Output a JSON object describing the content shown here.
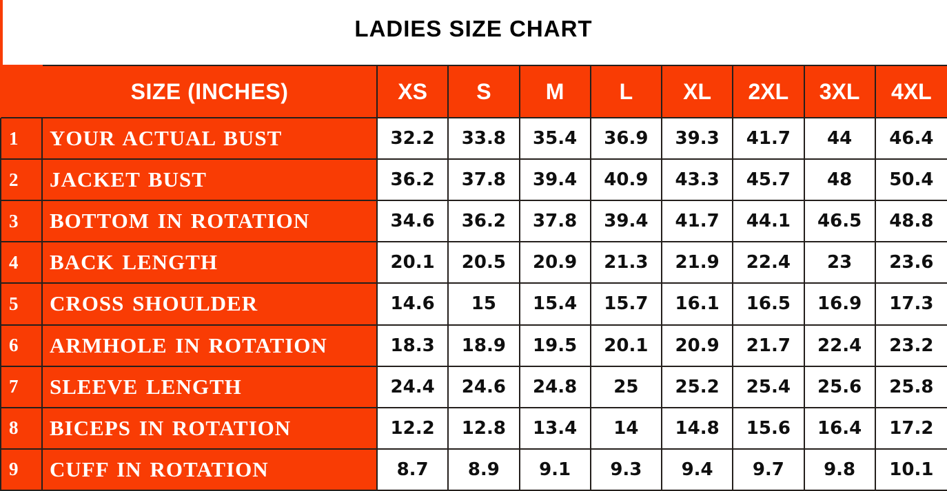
{
  "title": "LADIES SIZE CHART",
  "colors": {
    "accent_orange": "#F93C04",
    "border_dark": "#241F1C",
    "header_text": "#FFFFFF",
    "value_text": "#0F0F0F",
    "background": "#FFFFFF"
  },
  "table": {
    "header": {
      "label": "SIZE (INCHES)",
      "sizes": [
        "XS",
        "S",
        "M",
        "L",
        "XL",
        "2XL",
        "3XL",
        "4XL"
      ]
    },
    "rows": [
      {
        "num": "1",
        "label": "YOUR ACTUAL BUST",
        "values": [
          "32.2",
          "33.8",
          "35.4",
          "36.9",
          "39.3",
          "41.7",
          "44",
          "46.4"
        ]
      },
      {
        "num": "2",
        "label": "JACKET BUST",
        "values": [
          "36.2",
          "37.8",
          "39.4",
          "40.9",
          "43.3",
          "45.7",
          "48",
          "50.4"
        ]
      },
      {
        "num": "3",
        "label": "BOTTOM IN ROTATION",
        "values": [
          "34.6",
          "36.2",
          "37.8",
          "39.4",
          "41.7",
          "44.1",
          "46.5",
          "48.8"
        ]
      },
      {
        "num": "4",
        "label": "BACK LENGTH",
        "values": [
          "20.1",
          "20.5",
          "20.9",
          "21.3",
          "21.9",
          "22.4",
          "23",
          "23.6"
        ]
      },
      {
        "num": "5",
        "label": "CROSS SHOULDER",
        "values": [
          "14.6",
          "15",
          "15.4",
          "15.7",
          "16.1",
          "16.5",
          "16.9",
          "17.3"
        ]
      },
      {
        "num": "6",
        "label": "ARMHOLE IN ROTATION",
        "values": [
          "18.3",
          "18.9",
          "19.5",
          "20.1",
          "20.9",
          "21.7",
          "22.4",
          "23.2"
        ]
      },
      {
        "num": "7",
        "label": "SLEEVE LENGTH",
        "values": [
          "24.4",
          "24.6",
          "24.8",
          "25",
          "25.2",
          "25.4",
          "25.6",
          "25.8"
        ]
      },
      {
        "num": "8",
        "label": "BICEPS IN ROTATION",
        "values": [
          "12.2",
          "12.8",
          "13.4",
          "14",
          "14.8",
          "15.6",
          "16.4",
          "17.2"
        ]
      },
      {
        "num": "9",
        "label": "CUFF IN ROTATION",
        "values": [
          "8.7",
          "8.9",
          "9.1",
          "9.3",
          "9.4",
          "9.7",
          "9.8",
          "10.1"
        ]
      }
    ]
  },
  "chart_data": {
    "type": "table",
    "title": "LADIES SIZE CHART",
    "units_note": "SIZE (INCHES)",
    "columns": [
      "SIZE (INCHES)",
      "XS",
      "S",
      "M",
      "L",
      "XL",
      "2XL",
      "3XL",
      "4XL"
    ],
    "rows": [
      {
        "n": 1,
        "measurement": "YOUR ACTUAL BUST",
        "values": [
          32.2,
          33.8,
          35.4,
          36.9,
          39.3,
          41.7,
          44,
          46.4
        ]
      },
      {
        "n": 2,
        "measurement": "JACKET BUST",
        "values": [
          36.2,
          37.8,
          39.4,
          40.9,
          43.3,
          45.7,
          48,
          50.4
        ]
      },
      {
        "n": 3,
        "measurement": "BOTTOM IN ROTATION",
        "values": [
          34.6,
          36.2,
          37.8,
          39.4,
          41.7,
          44.1,
          46.5,
          48.8
        ]
      },
      {
        "n": 4,
        "measurement": "BACK LENGTH",
        "values": [
          20.1,
          20.5,
          20.9,
          21.3,
          21.9,
          22.4,
          23,
          23.6
        ]
      },
      {
        "n": 5,
        "measurement": "CROSS SHOULDER",
        "values": [
          14.6,
          15,
          15.4,
          15.7,
          16.1,
          16.5,
          16.9,
          17.3
        ]
      },
      {
        "n": 6,
        "measurement": "ARMHOLE IN ROTATION",
        "values": [
          18.3,
          18.9,
          19.5,
          20.1,
          20.9,
          21.7,
          22.4,
          23.2
        ]
      },
      {
        "n": 7,
        "measurement": "SLEEVE LENGTH",
        "values": [
          24.4,
          24.6,
          24.8,
          25,
          25.2,
          25.4,
          25.6,
          25.8
        ]
      },
      {
        "n": 8,
        "measurement": "BICEPS IN ROTATION",
        "values": [
          12.2,
          12.8,
          13.4,
          14,
          14.8,
          15.6,
          16.4,
          17.2
        ]
      },
      {
        "n": 9,
        "measurement": "CUFF IN ROTATION",
        "values": [
          8.7,
          8.9,
          9.1,
          9.3,
          9.4,
          9.7,
          9.8,
          10.1
        ]
      }
    ]
  }
}
